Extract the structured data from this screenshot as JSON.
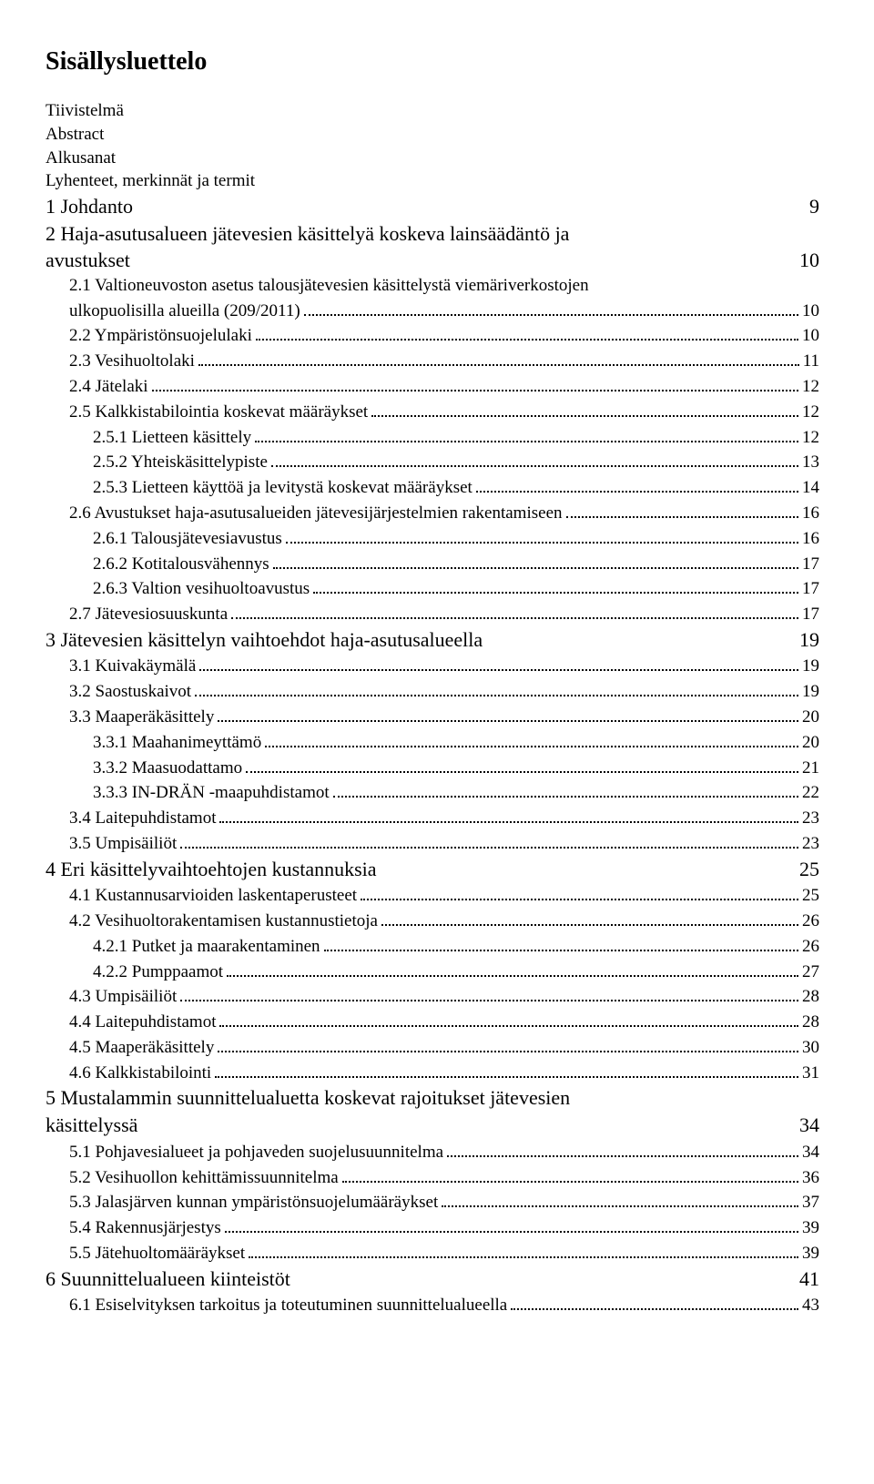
{
  "title": "Sisällysluettelo",
  "front": [
    "Tiivistelmä",
    "Abstract",
    "Alkusanat",
    "Lyhenteet, merkinnät ja termit"
  ],
  "entries": [
    {
      "label": "1 Johdanto",
      "page": "9",
      "dots": false,
      "indent": 0
    },
    {
      "label": "2 Haja-asutusalueen jätevesien käsittelyä koskeva lainsäädäntö ja",
      "indent": 0
    },
    {
      "label": "avustukset",
      "page": "10",
      "dots": false,
      "indent": 0
    },
    {
      "label": "2.1 Valtioneuvoston asetus talousjätevesien käsittelystä viemäriverkostojen",
      "indent": 1
    },
    {
      "label": "ulkopuolisilla alueilla (209/2011)",
      "page": "10",
      "dots": true,
      "indent": 1
    },
    {
      "label": "2.2 Ympäristönsuojelulaki",
      "page": "10",
      "dots": true,
      "indent": 1
    },
    {
      "label": "2.3 Vesihuoltolaki",
      "page": "11",
      "dots": true,
      "indent": 1
    },
    {
      "label": "2.4 Jätelaki",
      "page": "12",
      "dots": true,
      "indent": 1
    },
    {
      "label": "2.5 Kalkkistabilointia koskevat määräykset",
      "page": "12",
      "dots": true,
      "indent": 1
    },
    {
      "label": "2.5.1 Lietteen käsittely",
      "page": "12",
      "dots": true,
      "indent": 2
    },
    {
      "label": "2.5.2 Yhteiskäsittelypiste",
      "page": "13",
      "dots": true,
      "indent": 2
    },
    {
      "label": "2.5.3 Lietteen käyttöä ja levitystä koskevat määräykset",
      "page": "14",
      "dots": true,
      "indent": 2
    },
    {
      "label": "2.6 Avustukset haja-asutusalueiden jätevesijärjestelmien rakentamiseen",
      "page": "16",
      "dots": true,
      "indent": 1
    },
    {
      "label": "2.6.1 Talousjätevesiavustus",
      "page": "16",
      "dots": true,
      "indent": 2
    },
    {
      "label": "2.6.2 Kotitalousvähennys",
      "page": "17",
      "dots": true,
      "indent": 2
    },
    {
      "label": "2.6.3 Valtion vesihuoltoavustus",
      "page": "17",
      "dots": true,
      "indent": 2
    },
    {
      "label": "2.7 Jätevesiosuuskunta",
      "page": "17",
      "dots": true,
      "indent": 1
    },
    {
      "label": "3 Jätevesien käsittelyn vaihtoehdot haja-asutusalueella",
      "page": "19",
      "dots": false,
      "indent": 0
    },
    {
      "label": "3.1 Kuivakäymälä",
      "page": "19",
      "dots": true,
      "indent": 1
    },
    {
      "label": "3.2 Saostuskaivot",
      "page": "19",
      "dots": true,
      "indent": 1
    },
    {
      "label": "3.3 Maaperäkäsittely",
      "page": "20",
      "dots": true,
      "indent": 1
    },
    {
      "label": "3.3.1 Maahanimeyttämö",
      "page": "20",
      "dots": true,
      "indent": 2
    },
    {
      "label": "3.3.2 Maasuodattamo",
      "page": "21",
      "dots": true,
      "indent": 2
    },
    {
      "label": "3.3.3 IN-DRÄN -maapuhdistamot",
      "page": "22",
      "dots": true,
      "indent": 2
    },
    {
      "label": "3.4 Laitepuhdistamot",
      "page": "23",
      "dots": true,
      "indent": 1
    },
    {
      "label": "3.5 Umpisäiliöt",
      "page": "23",
      "dots": true,
      "indent": 1
    },
    {
      "label": "4 Eri käsittelyvaihtoehtojen kustannuksia",
      "page": "25",
      "dots": false,
      "indent": 0
    },
    {
      "label": "4.1 Kustannusarvioiden laskentaperusteet",
      "page": "25",
      "dots": true,
      "indent": 1
    },
    {
      "label": "4.2 Vesihuoltorakentamisen kustannustietoja",
      "page": "26",
      "dots": true,
      "indent": 1
    },
    {
      "label": "4.2.1 Putket ja maarakentaminen",
      "page": "26",
      "dots": true,
      "indent": 2
    },
    {
      "label": "4.2.2 Pumppaamot",
      "page": "27",
      "dots": true,
      "indent": 2
    },
    {
      "label": "4.3 Umpisäiliöt",
      "page": "28",
      "dots": true,
      "indent": 1
    },
    {
      "label": "4.4 Laitepuhdistamot",
      "page": "28",
      "dots": true,
      "indent": 1
    },
    {
      "label": "4.5 Maaperäkäsittely",
      "page": "30",
      "dots": true,
      "indent": 1
    },
    {
      "label": "4.6 Kalkkistabilointi",
      "page": "31",
      "dots": true,
      "indent": 1
    },
    {
      "label": "5 Mustalammin suunnittelualuetta koskevat rajoitukset jätevesien",
      "indent": 0
    },
    {
      "label": "käsittelyssä",
      "page": "34",
      "dots": false,
      "indent": 0
    },
    {
      "label": "5.1 Pohjavesialueet ja pohjaveden suojelusuunnitelma",
      "page": "34",
      "dots": true,
      "indent": 1
    },
    {
      "label": "5.2 Vesihuollon kehittämissuunnitelma",
      "page": "36",
      "dots": true,
      "indent": 1
    },
    {
      "label": "5.3 Jalasjärven kunnan ympäristönsuojelumääräykset",
      "page": "37",
      "dots": true,
      "indent": 1
    },
    {
      "label": "5.4 Rakennusjärjestys",
      "page": "39",
      "dots": true,
      "indent": 1
    },
    {
      "label": "5.5 Jätehuoltomääräykset",
      "page": "39",
      "dots": true,
      "indent": 1
    },
    {
      "label": "6 Suunnittelualueen kiinteistöt",
      "page": "41",
      "dots": false,
      "indent": 0
    },
    {
      "label": "6.1 Esiselvityksen tarkoitus ja toteutuminen suunnittelualueella",
      "page": "43",
      "dots": true,
      "indent": 1
    }
  ]
}
